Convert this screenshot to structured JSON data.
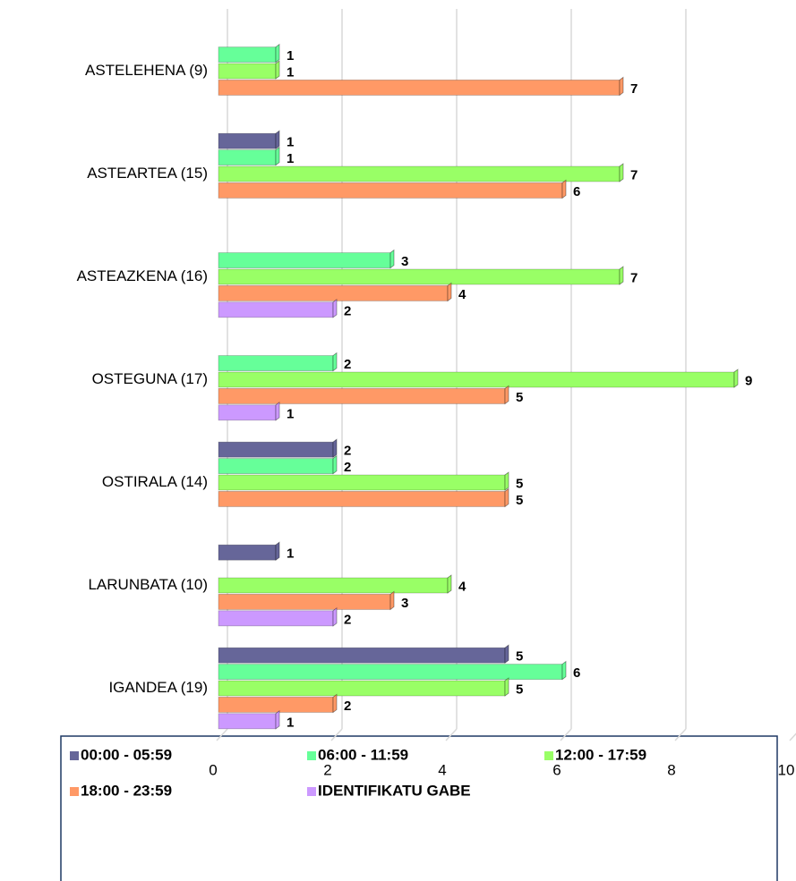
{
  "chart_data": {
    "type": "bar",
    "orientation": "horizontal",
    "categories": [
      "ASTELEHENA (9)",
      "ASTEARTEA (15)",
      "ASTEAZKENA (16)",
      "OSTEGUNA (17)",
      "OSTIRALA (14)",
      "LARUNBATA (10)",
      "IGANDEA (19)"
    ],
    "series": [
      {
        "name": "00:00 - 05:59",
        "color": "#666699",
        "values": [
          null,
          1,
          null,
          null,
          2,
          1,
          5
        ]
      },
      {
        "name": "06:00 - 11:59",
        "color": "#66ff99",
        "values": [
          1,
          1,
          3,
          2,
          2,
          null,
          6
        ]
      },
      {
        "name": "12:00 - 17:59",
        "color": "#99ff66",
        "values": [
          1,
          7,
          7,
          9,
          5,
          4,
          5
        ]
      },
      {
        "name": "18:00 - 23:59",
        "color": "#ff9966",
        "values": [
          7,
          6,
          4,
          5,
          5,
          3,
          2
        ]
      },
      {
        "name": "IDENTIFIKATU GABE",
        "color": "#cc99ff",
        "values": [
          null,
          null,
          2,
          1,
          null,
          2,
          1
        ]
      }
    ],
    "xlim": [
      0,
      10
    ],
    "xticks": [
      0,
      2,
      4,
      6,
      8,
      10
    ],
    "grid": true,
    "legend": "bottom"
  }
}
